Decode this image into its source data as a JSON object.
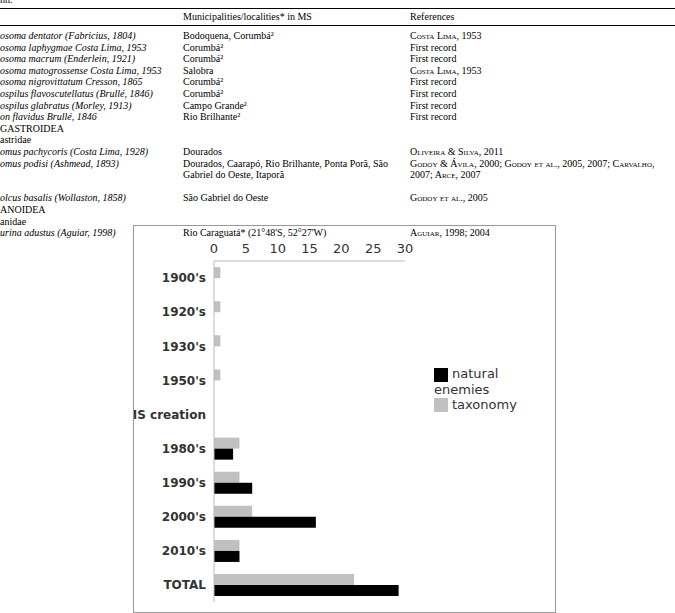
{
  "page": {
    "caption_fragment": "nn.",
    "table": {
      "header": [
        "Municipalities/localities* in MS",
        "References"
      ],
      "rows": [
        [
          "osoma dentator (Fabricius, 1804)",
          "Bodoquena, Corumbá²",
          "Costa Lima, 1953"
        ],
        [
          "osoma laphygmae Costa Lima, 1953",
          "Corumbá²",
          "First record"
        ],
        [
          "osoma macrum (Enderlein, 1921)",
          "Corumbá²",
          "First record"
        ],
        [
          "osoma matogrossense Costa Lima, 1953",
          "Salobra",
          "Costa Lima, 1953"
        ],
        [
          "osoma nigrovittatum Cresson, 1865",
          "Corumbá²",
          "First record"
        ],
        [
          "ospilus flavoscutellatus (Brullé, 1846)",
          "Corumbá²",
          "First record"
        ],
        [
          "ospilus glabratus (Morley, 1913)",
          "Campo Grande²",
          "First record"
        ],
        [
          "on flavidus Brullé, 1846",
          "Rio Brilhante²",
          "First record"
        ],
        [
          "GASTROIDEA"
        ],
        [
          "astridae"
        ],
        [
          "omus pachycoris (Costa Lima, 1928)",
          "Dourados",
          "Oliveira & Silva, 2011"
        ],
        [
          "omus podisi (Ashmead, 1893)",
          "Dourados, Caarapó, Rio Brilhante, Ponta Porã, São Gabriel do Oeste, Itaporã",
          "Godoy & Ávila, 2000; Godoy et al., 2005, 2007; Carvalho, 2007; Arce, 2007"
        ],
        [
          "olcus basalis (Wollaston, 1858)",
          "São Gabriel do Oeste",
          "Godoy et al., 2005"
        ],
        [
          "ANOIDEA"
        ],
        [
          "anidae"
        ],
        [
          "urina adustus (Aguiar, 1998)",
          "Rio Caraguatá* (21°48'S, 52°27'W)",
          "Aguiar, 1998; 2004"
        ]
      ]
    }
  },
  "chart_data": {
    "type": "bar",
    "orientation": "horizontal",
    "categories": [
      "1900's",
      "1920's",
      "1930's",
      "1950's",
      "MS creation",
      "1980's",
      "1990's",
      "2000's",
      "2010's",
      "TOTAL"
    ],
    "series": [
      {
        "name": "taxonomy",
        "color": "#c0c0c0",
        "values": [
          1,
          1,
          1,
          1,
          null,
          4,
          4,
          6,
          4,
          22
        ]
      },
      {
        "name": "natural enemies",
        "color": "#000000",
        "values": [
          null,
          null,
          null,
          null,
          null,
          3,
          6,
          16,
          4,
          29
        ]
      }
    ],
    "xlim": [
      0,
      30
    ],
    "xticks": [
      0,
      5,
      10,
      15,
      20,
      25,
      30
    ],
    "grid": false,
    "legend": "right"
  }
}
